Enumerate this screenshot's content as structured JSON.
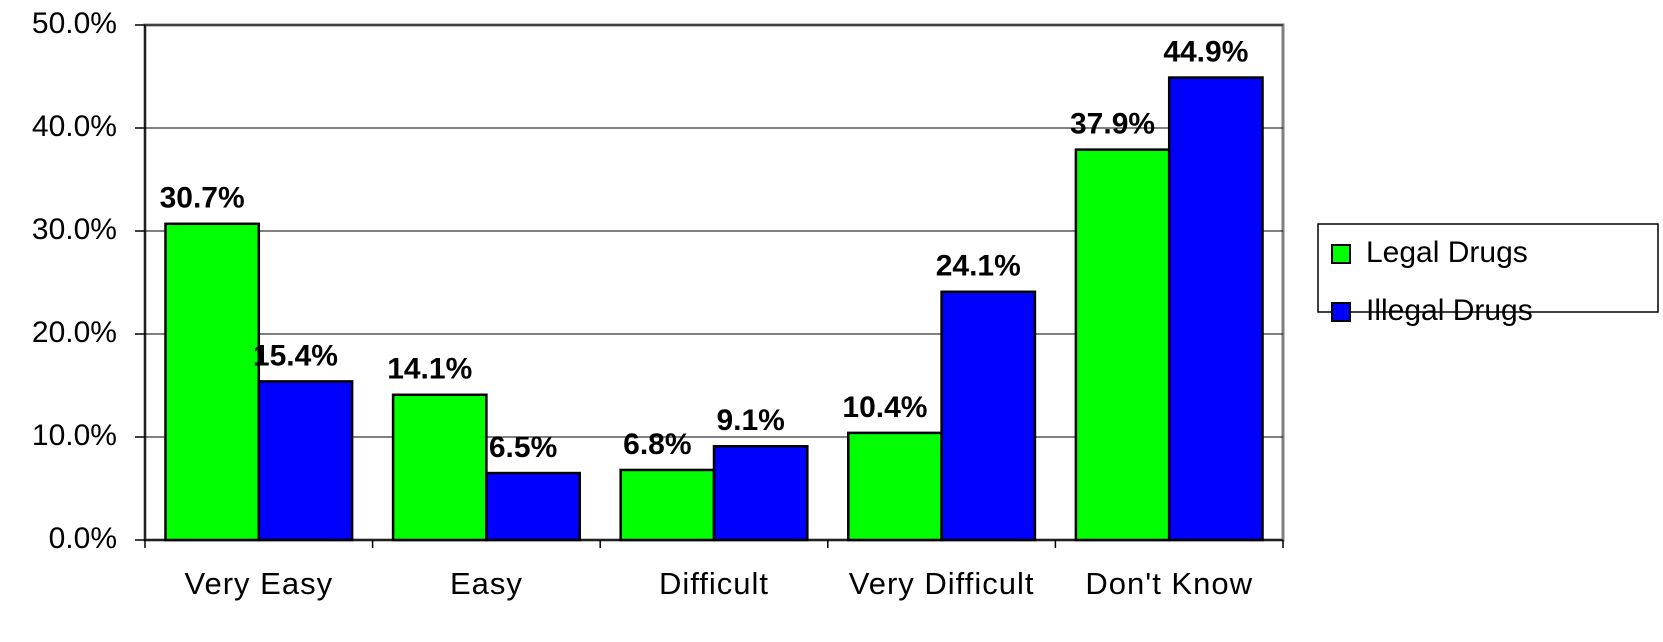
{
  "chart_data": {
    "type": "bar",
    "categories": [
      "Very Easy",
      "Easy",
      "Difficult",
      "Very Difficult",
      "Don't Know"
    ],
    "series": [
      {
        "name": "Legal Drugs",
        "color": "#00ff00",
        "values": [
          30.7,
          14.1,
          6.8,
          10.4,
          37.9
        ],
        "value_labels": [
          "30.7%",
          "14.1%",
          "6.8%",
          "10.4%",
          "37.9%"
        ]
      },
      {
        "name": "Illegal Drugs",
        "color": "#0000ff",
        "values": [
          15.4,
          6.5,
          9.1,
          24.1,
          44.9
        ],
        "value_labels": [
          "15.4%",
          "6.5%",
          "9.1%",
          "24.1%",
          "44.9%"
        ]
      }
    ],
    "ylim": [
      0,
      50
    ],
    "yticks": [
      {
        "value": 0,
        "label": "0.0%"
      },
      {
        "value": 10,
        "label": "10.0%"
      },
      {
        "value": 20,
        "label": "20.0%"
      },
      {
        "value": 30,
        "label": "30.0%"
      },
      {
        "value": 40,
        "label": "40.0%"
      },
      {
        "value": 50,
        "label": "50.0%"
      }
    ],
    "grid": true,
    "legend": "right"
  }
}
